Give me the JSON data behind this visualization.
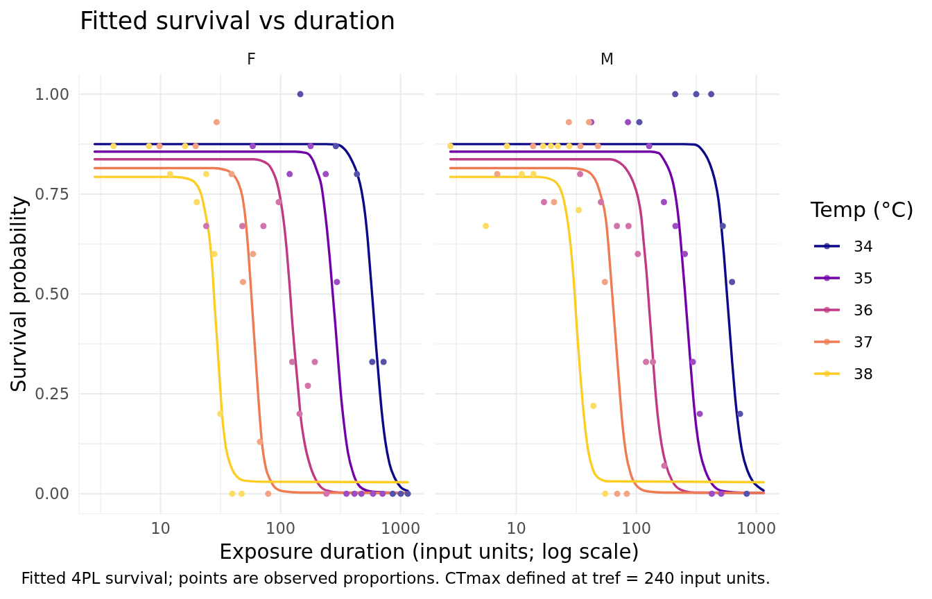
{
  "chart_data": [
    {
      "type": "line",
      "title": "Fitted survival vs duration",
      "subtitle": "F",
      "xlabel": "Exposure duration (input units; log scale)",
      "ylabel": "Survival probability",
      "annotations": [
        "Fitted 4PL survival; points are observed proportions. CTmax defined at tref = 240 input units."
      ],
      "xlim": [
        2.09,
        1560
      ],
      "xticks": [
        {
          "value": 3.162,
          "label": null
        },
        10,
        {
          "value": 31.62,
          "label": null
        },
        100,
        {
          "value": 316.2,
          "label": null
        },
        1000
      ],
      "log": "x",
      "ylim": [
        -0.05,
        1.05
      ],
      "yticks": [
        {
          "value": 0,
          "label": "0.00"
        },
        {
          "value": 0.125,
          "label": null
        },
        {
          "value": 0.25,
          "label": "0.25"
        },
        {
          "value": 0.375,
          "label": null
        },
        {
          "value": 0.5,
          "label": "0.50"
        },
        {
          "value": 0.625,
          "label": null
        },
        {
          "value": 0.75,
          "label": "0.75"
        },
        {
          "value": 0.875,
          "label": null
        },
        {
          "value": 1,
          "label": "1.00"
        }
      ],
      "grid": true,
      "series": [
        {
          "color": "#0d0887",
          "x": [
            2.82,
            238,
            294,
            345,
            394,
            438,
            474,
            506,
            534,
            562,
            594,
            626,
            660,
            696,
            746,
            808,
            899,
            1000,
            1150
          ],
          "values": [
            0.875,
            0.875,
            0.874,
            0.861,
            0.833,
            0.799,
            0.757,
            0.701,
            0.632,
            0.549,
            0.458,
            0.368,
            0.285,
            0.208,
            0.132,
            0.076,
            0.038,
            0.017,
            0.007
          ]
        },
        {
          "color": "#7301a8",
          "x": [
            2.82,
            132,
            164,
            187,
            202,
            219,
            231,
            244,
            257,
            271,
            286,
            302,
            318,
            336,
            364,
            405,
            462,
            557,
            766,
            1150
          ],
          "values": [
            0.856,
            0.856,
            0.853,
            0.833,
            0.806,
            0.771,
            0.722,
            0.66,
            0.59,
            0.507,
            0.424,
            0.333,
            0.25,
            0.181,
            0.104,
            0.049,
            0.017,
            0.006,
            0.003,
            0.002
          ]
        },
        {
          "color": "#bf3984",
          "x": [
            2.82,
            60,
            77.6,
            86.3,
            93.5,
            100,
            107,
            113,
            119,
            125,
            132,
            140,
            147,
            159,
            177,
            203,
            238,
            310,
            1150
          ],
          "values": [
            0.837,
            0.837,
            0.826,
            0.806,
            0.778,
            0.736,
            0.674,
            0.604,
            0.521,
            0.431,
            0.347,
            0.264,
            0.194,
            0.125,
            0.069,
            0.028,
            0.009,
            0.003,
            0.002
          ]
        },
        {
          "color": "#ee7b51",
          "x": [
            2.82,
            27.5,
            34,
            39.9,
            44.4,
            48.1,
            50.7,
            53.5,
            56.4,
            59.5,
            62.8,
            66.2,
            69.8,
            75.6,
            81.9,
            91.1,
            107,
            147,
            1150
          ],
          "values": [
            0.815,
            0.815,
            0.811,
            0.8,
            0.778,
            0.743,
            0.694,
            0.618,
            0.521,
            0.417,
            0.313,
            0.215,
            0.13,
            0.063,
            0.035,
            0.014,
            0.006,
            0.003,
            0.002
          ]
        },
        {
          "color": "#fccd25",
          "x": [
            2.82,
            13,
            17,
            19.4,
            21.6,
            23.4,
            25.4,
            26.8,
            28.2,
            29.8,
            31.4,
            33.1,
            34.9,
            37.8,
            42.1,
            49.4,
            68,
            1150
          ],
          "values": [
            0.793,
            0.793,
            0.788,
            0.778,
            0.753,
            0.708,
            0.646,
            0.576,
            0.472,
            0.368,
            0.264,
            0.174,
            0.118,
            0.076,
            0.047,
            0.033,
            0.03,
            0.029
          ]
        },
        {
          "type": "scatter",
          "marker": "circle",
          "color": "#5652ab",
          "x": [
            146,
            289,
            433,
            581,
            722,
            861,
            1005,
            1150
          ],
          "values": [
            1,
            0.87,
            0.8,
            0.33,
            0.33,
            0,
            0,
            0
          ]
        },
        {
          "type": "scatter",
          "marker": "circle",
          "color": "#9d4dc2",
          "x": [
            58.6,
            119,
            178,
            238,
            295,
            354,
            413,
            472,
            590,
            708
          ],
          "values": [
            0.87,
            0.8,
            0.87,
            0.8,
            0.53,
            0,
            0,
            0,
            0,
            0
          ]
        },
        {
          "type": "scatter",
          "marker": "circle",
          "color": "#d274a9",
          "x": [
            24,
            48,
            72,
            96.6,
            125,
            144,
            169,
            193,
            241
          ],
          "values": [
            0.67,
            0.67,
            0.67,
            0.73,
            0.33,
            0.2,
            0.27,
            0.33,
            0
          ]
        },
        {
          "type": "scatter",
          "marker": "circle",
          "color": "#f3a485",
          "x": [
            9.8,
            19.6,
            29.3,
            39.1,
            48.6,
            58.9,
            67.3,
            78.9
          ],
          "values": [
            0.87,
            0.87,
            0.93,
            0.8,
            0.53,
            0.6,
            0.13,
            0
          ]
        },
        {
          "type": "scatter",
          "marker": "circle",
          "color": "#fddc66",
          "x": [
            4.05,
            8,
            12,
            16,
            20,
            24,
            28.1,
            31.4,
            39.5,
            47.4
          ],
          "values": [
            0.87,
            0.87,
            0.8,
            0.87,
            0.73,
            0.8,
            0.6,
            0.2,
            0,
            0
          ]
        }
      ]
    },
    {
      "type": "line",
      "subtitle": "M",
      "legend": "right",
      "legend_title": "Temp (°C)",
      "tick_labels": "x",
      "xlim": [
        2.09,
        1560
      ],
      "xticks": [
        {
          "value": 3.162,
          "label": null
        },
        10,
        {
          "value": 31.62,
          "label": null
        },
        100,
        {
          "value": 316.2,
          "label": null
        },
        1000
      ],
      "log": "x",
      "ylim": [
        -0.05,
        1.05
      ],
      "yticks": [
        0,
        {
          "value": 0.125,
          "label": null
        },
        0.25,
        {
          "value": 0.375,
          "label": null
        },
        0.5,
        {
          "value": 0.625,
          "label": null
        },
        0.75,
        {
          "value": 0.875,
          "label": null
        },
        1
      ],
      "grid": true,
      "series": [
        {
          "name": "34",
          "color": "#0d0887",
          "x": [
            2.82,
            248,
            306,
            359,
            410,
            451,
            484,
            510,
            538,
            567,
            598,
            631,
            666,
            710,
            764,
            841,
            935,
            1041,
            1150
          ],
          "values": [
            0.875,
            0.875,
            0.874,
            0.858,
            0.826,
            0.785,
            0.736,
            0.674,
            0.597,
            0.507,
            0.417,
            0.326,
            0.243,
            0.167,
            0.104,
            0.059,
            0.031,
            0.017,
            0.008
          ]
        },
        {
          "name": "35",
          "color": "#7301a8",
          "x": [
            2.82,
            131,
            153,
            172,
            190,
            205,
            218,
            230,
            241,
            254,
            268,
            283,
            298,
            316,
            340,
            378,
            432,
            521,
            717,
            1150
          ],
          "values": [
            0.856,
            0.856,
            0.853,
            0.833,
            0.806,
            0.771,
            0.722,
            0.66,
            0.59,
            0.507,
            0.417,
            0.326,
            0.243,
            0.167,
            0.104,
            0.056,
            0.023,
            0.007,
            0.003,
            0.002
          ]
        },
        {
          "name": "36",
          "color": "#bf3984",
          "x": [
            2.82,
            60,
            76.6,
            85.2,
            94.8,
            103,
            110,
            115,
            122,
            129,
            136,
            143,
            151,
            162,
            178,
            200,
            234,
            306,
            1150
          ],
          "values": [
            0.837,
            0.837,
            0.823,
            0.806,
            0.778,
            0.743,
            0.694,
            0.632,
            0.549,
            0.451,
            0.361,
            0.271,
            0.194,
            0.125,
            0.069,
            0.031,
            0.01,
            0.003,
            0.002
          ]
        },
        {
          "name": "37",
          "color": "#ee7b51",
          "x": [
            2.82,
            27.5,
            35.9,
            42.1,
            46.8,
            50.7,
            55.7,
            58.7,
            61.9,
            65.3,
            68.9,
            72.7,
            76.6,
            81.7,
            89.9,
            103,
            124,
            170,
            1150
          ],
          "values": [
            0.815,
            0.815,
            0.811,
            0.8,
            0.778,
            0.745,
            0.688,
            0.618,
            0.528,
            0.438,
            0.347,
            0.257,
            0.174,
            0.104,
            0.049,
            0.017,
            0.006,
            0.003,
            0.002
          ]
        },
        {
          "name": "38",
          "color": "#fccd25",
          "x": [
            2.82,
            15.3,
            18.9,
            21.6,
            23.7,
            25.4,
            27.2,
            28.7,
            30.3,
            31.9,
            33.7,
            35.5,
            37.4,
            39.9,
            43.2,
            48.1,
            57.9,
            1150
          ],
          "values": [
            0.793,
            0.793,
            0.788,
            0.778,
            0.757,
            0.722,
            0.667,
            0.604,
            0.521,
            0.417,
            0.319,
            0.236,
            0.167,
            0.104,
            0.063,
            0.04,
            0.031,
            0.029
          ]
        },
        {
          "type": "scatter",
          "marker": "circle",
          "color": "#5652ab",
          "x": [
            106,
            211,
            316,
            421,
            526,
            628,
            732,
            832
          ],
          "values": [
            0.93,
            1,
            1,
            1,
            0.67,
            0.53,
            0.2,
            0
          ]
        },
        {
          "type": "scatter",
          "marker": "circle",
          "color": "#9d4dc2",
          "x": [
            42.1,
            85.2,
            128,
            170,
            212,
            254,
            296,
            338,
            426,
            510
          ],
          "values": [
            0.93,
            0.93,
            0.87,
            0.73,
            0.67,
            0.6,
            0.33,
            0.2,
            0,
            0
          ]
        },
        {
          "type": "scatter",
          "marker": "circle",
          "color": "#d274a9",
          "x": [
            17,
            34,
            50.7,
            68.9,
            86.1,
            103,
            120.5,
            137.6,
            171
          ],
          "values": [
            0.73,
            0.8,
            0.73,
            0.67,
            0.67,
            0.6,
            0.33,
            0.33,
            0.07
          ]
        },
        {
          "type": "scatter",
          "marker": "circle",
          "color": "#f3a485",
          "x": [
            6.93,
            13.8,
            20.6,
            27.4,
            34.2,
            40.4,
            47.9,
            54.7,
            69.3,
            83.4
          ],
          "values": [
            0.8,
            0.87,
            0.73,
            0.93,
            0.87,
            0.93,
            0.87,
            0.53,
            0,
            0
          ]
        },
        {
          "type": "scatter",
          "marker": "circle",
          "color": "#fddc66",
          "x": [
            2.82,
            5.57,
            8.35,
            11.1,
            13.9,
            16.7,
            19.4,
            22.2,
            27.6,
            33.1,
            43.9,
            55
          ],
          "values": [
            0.87,
            0.67,
            0.87,
            0.8,
            0.8,
            0.87,
            0.87,
            0.87,
            0.87,
            0.71,
            0.22,
            0
          ]
        }
      ]
    }
  ]
}
